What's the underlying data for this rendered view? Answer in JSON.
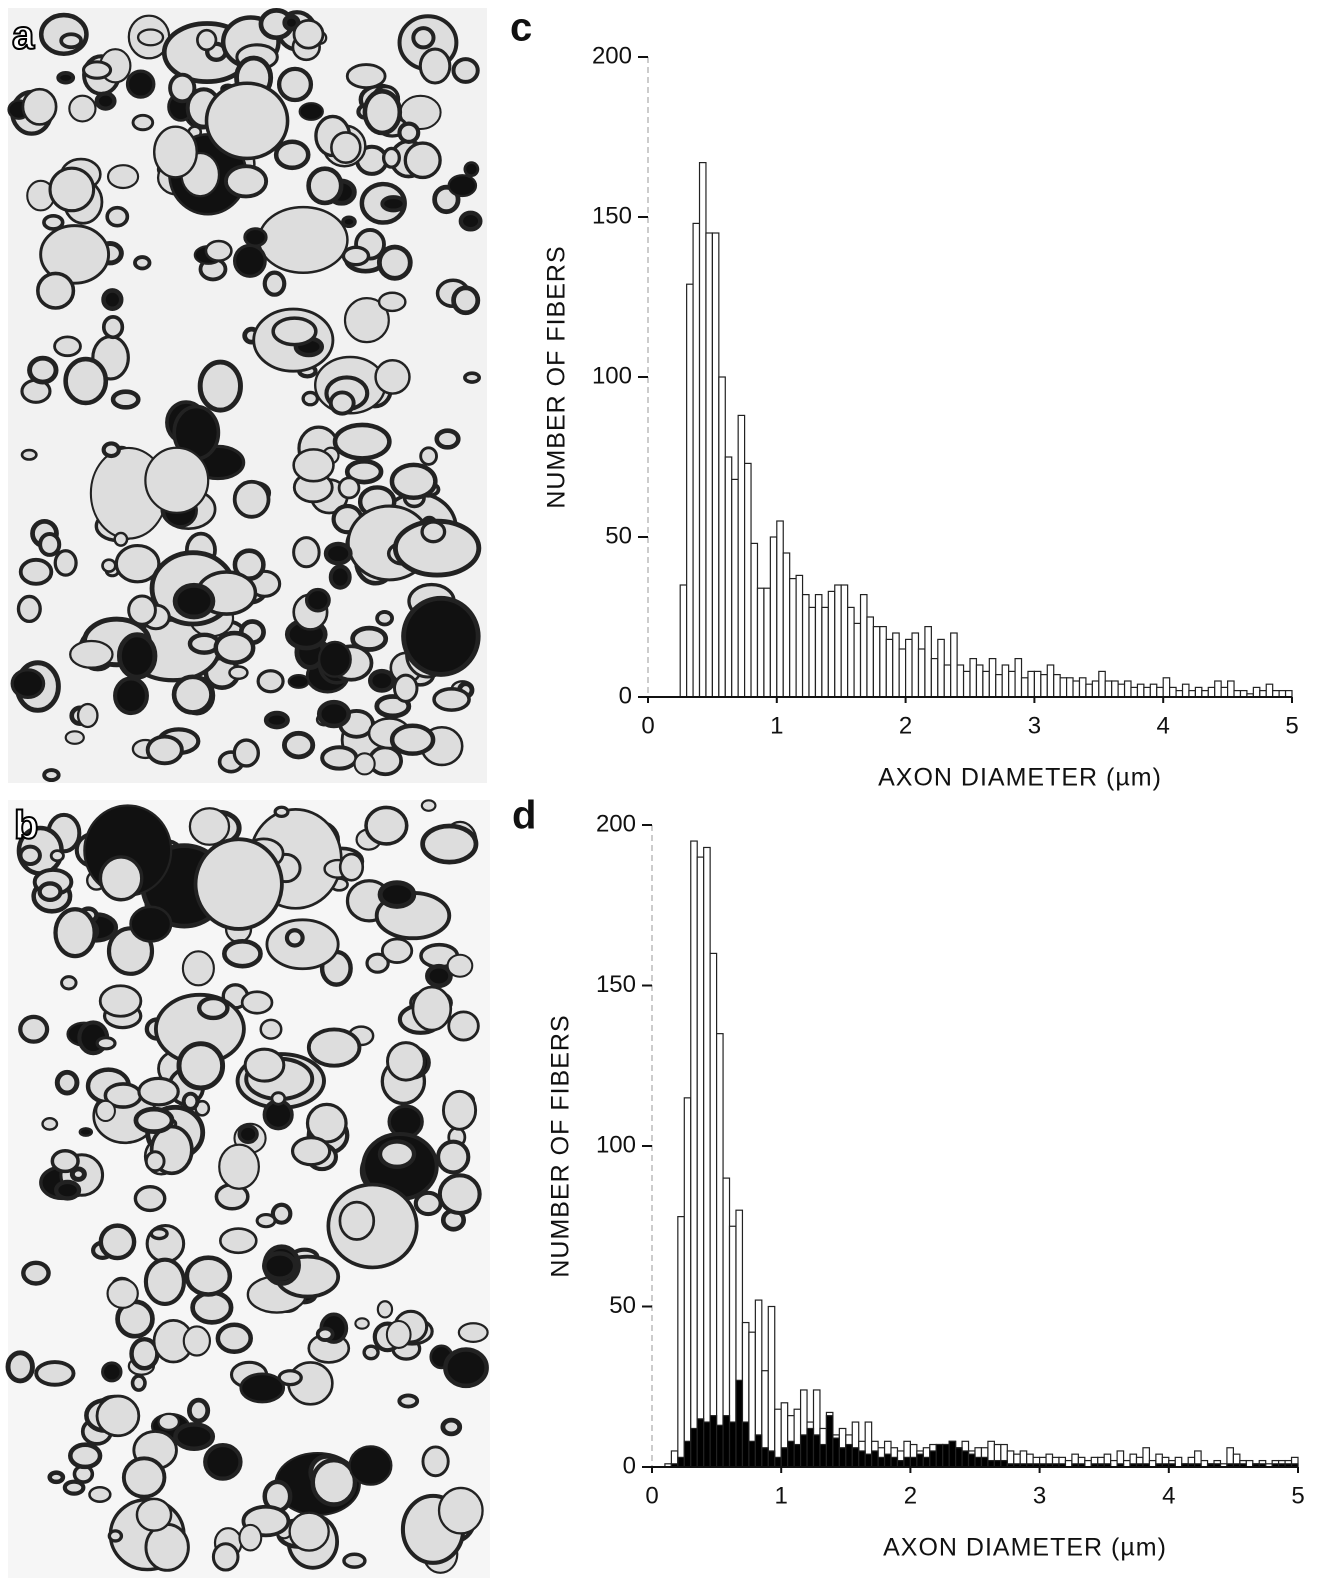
{
  "micrographs": [
    {
      "label": "a"
    },
    {
      "label": "b"
    }
  ],
  "chart_data": [
    {
      "type": "histogram",
      "panel": "c",
      "xlabel": "AXON DIAMETER (µm)",
      "ylabel": "NUMBER OF FIBERS",
      "bins": [
        0,
        0.05,
        0.1,
        0.15,
        0.2,
        0.25,
        0.3,
        0.35,
        0.4,
        0.45,
        0.5,
        0.55,
        0.6,
        0.65,
        0.7,
        0.75,
        0.8,
        0.85,
        0.9,
        0.95,
        1,
        1.05,
        1.1,
        1.15,
        1.2,
        1.25,
        1.3,
        1.35,
        1.4,
        1.45,
        1.5,
        1.55,
        1.6,
        1.65,
        1.7,
        1.75,
        1.8,
        1.85,
        1.9,
        1.95,
        2,
        2.05,
        2.1,
        2.15,
        2.2,
        2.25,
        2.3,
        2.35,
        2.4,
        2.45,
        2.5,
        2.55,
        2.6,
        2.65,
        2.7,
        2.75,
        2.8,
        2.85,
        2.9,
        2.95,
        3,
        3.05,
        3.1,
        3.15,
        3.2,
        3.25,
        3.3,
        3.35,
        3.4,
        3.45,
        3.5,
        3.55,
        3.6,
        3.65,
        3.7,
        3.75,
        3.8,
        3.85,
        3.9,
        3.95,
        4,
        4.05,
        4.1,
        4.15,
        4.2,
        4.25,
        4.3,
        4.35,
        4.4,
        4.45,
        4.5,
        4.55,
        4.6,
        4.65,
        4.7,
        4.75,
        4.8,
        4.85,
        4.9,
        4.95,
        5
      ],
      "series": [
        {
          "color": "#ffffff",
          "values": [
            0,
            0,
            0,
            0,
            0,
            35,
            129,
            148,
            167,
            145,
            145,
            100,
            75,
            68,
            88,
            73,
            48,
            34,
            34,
            50,
            55,
            45,
            37,
            38,
            32,
            28,
            32,
            28,
            33,
            35,
            35,
            28,
            23,
            32,
            25,
            22,
            22,
            18,
            20,
            15,
            18,
            20,
            15,
            22,
            12,
            18,
            10,
            20,
            10,
            8,
            12,
            10,
            8,
            12,
            7,
            10,
            8,
            12,
            6,
            8,
            8,
            7,
            10,
            7,
            6,
            6,
            5,
            6,
            4,
            5,
            8,
            5,
            5,
            4,
            5,
            3,
            4,
            3,
            4,
            3,
            6,
            3,
            2,
            4,
            2,
            3,
            2,
            3,
            5,
            3,
            5,
            2,
            2,
            1,
            3,
            2,
            4,
            2,
            2,
            2
          ]
        }
      ],
      "xlim": [
        0,
        5
      ],
      "ylim": [
        0,
        200
      ],
      "xticks": [
        0,
        1,
        2,
        3,
        4,
        5
      ],
      "yticks": [
        0,
        50,
        100,
        150,
        200
      ]
    },
    {
      "type": "histogram",
      "panel": "d",
      "xlabel": "AXON DIAMETER (µm)",
      "ylabel": "NUMBER OF FIBERS",
      "bins": [
        0,
        0.05,
        0.1,
        0.15,
        0.2,
        0.25,
        0.3,
        0.35,
        0.4,
        0.45,
        0.5,
        0.55,
        0.6,
        0.65,
        0.7,
        0.75,
        0.8,
        0.85,
        0.9,
        0.95,
        1,
        1.05,
        1.1,
        1.15,
        1.2,
        1.25,
        1.3,
        1.35,
        1.4,
        1.45,
        1.5,
        1.55,
        1.6,
        1.65,
        1.7,
        1.75,
        1.8,
        1.85,
        1.9,
        1.95,
        2,
        2.05,
        2.1,
        2.15,
        2.2,
        2.25,
        2.3,
        2.35,
        2.4,
        2.45,
        2.5,
        2.55,
        2.6,
        2.65,
        2.7,
        2.75,
        2.8,
        2.85,
        2.9,
        2.95,
        3,
        3.05,
        3.1,
        3.15,
        3.2,
        3.25,
        3.3,
        3.35,
        3.4,
        3.45,
        3.5,
        3.55,
        3.6,
        3.65,
        3.7,
        3.75,
        3.8,
        3.85,
        3.9,
        3.95,
        4,
        4.05,
        4.1,
        4.15,
        4.2,
        4.25,
        4.3,
        4.35,
        4.4,
        4.45,
        4.5,
        4.55,
        4.6,
        4.65,
        4.7,
        4.75,
        4.8,
        4.85,
        4.9,
        4.95,
        5
      ],
      "series": [
        {
          "color": "#ffffff",
          "values": [
            0,
            0,
            1,
            5,
            78,
            115,
            195,
            190,
            193,
            160,
            135,
            90,
            75,
            80,
            45,
            42,
            52,
            30,
            50,
            18,
            20,
            16,
            18,
            24,
            14,
            24,
            12,
            17,
            10,
            12,
            10,
            14,
            8,
            14,
            8,
            6,
            8,
            6,
            5,
            8,
            7,
            5,
            6,
            7,
            7,
            7,
            8,
            6,
            8,
            5,
            6,
            6,
            8,
            7,
            7,
            5,
            4,
            5,
            4,
            3,
            3,
            4,
            3,
            3,
            2,
            4,
            3,
            2,
            3,
            3,
            4,
            2,
            5,
            2,
            4,
            3,
            6,
            2,
            4,
            3,
            2,
            3,
            1,
            3,
            5,
            2,
            1,
            2,
            1,
            6,
            4,
            2,
            2,
            1,
            2,
            1,
            2,
            2,
            2,
            3
          ]
        },
        {
          "color": "#000000",
          "values": [
            0,
            0,
            0,
            1,
            3,
            8,
            12,
            15,
            14,
            16,
            13,
            16,
            14,
            27,
            14,
            8,
            10,
            6,
            5,
            3,
            6,
            8,
            7,
            10,
            12,
            10,
            7,
            16,
            9,
            6,
            7,
            6,
            5,
            4,
            5,
            3,
            4,
            3,
            2,
            3,
            3,
            4,
            3,
            5,
            7,
            7,
            8,
            6,
            5,
            4,
            3,
            3,
            2,
            2,
            2,
            1,
            1,
            1,
            1,
            1,
            1,
            1,
            1,
            1,
            0,
            1,
            1,
            0,
            1,
            1,
            1,
            0,
            1,
            0,
            1,
            1,
            1,
            0,
            1,
            1,
            1,
            0,
            1,
            1,
            1,
            0,
            1,
            1,
            0,
            1,
            1,
            1,
            0,
            1,
            1,
            0,
            1,
            1,
            1,
            1
          ]
        }
      ],
      "xlim": [
        0,
        5
      ],
      "ylim": [
        0,
        200
      ],
      "xticks": [
        0,
        1,
        2,
        3,
        4,
        5
      ],
      "yticks": [
        0,
        50,
        100,
        150,
        200
      ]
    }
  ]
}
